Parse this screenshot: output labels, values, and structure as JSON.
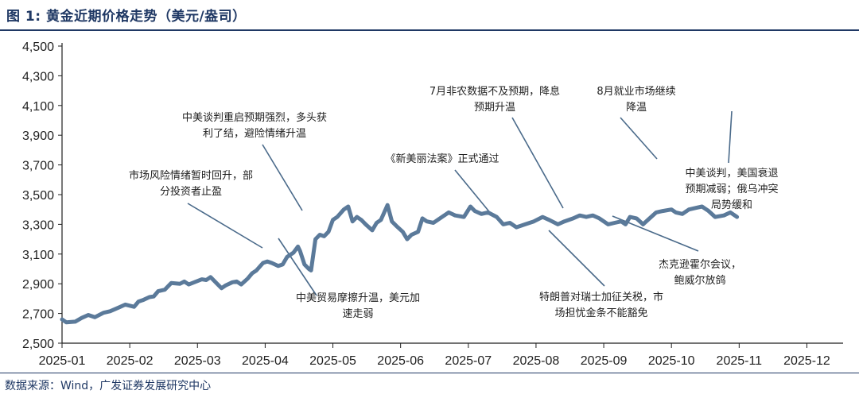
{
  "header": {
    "title": "图 1:  黄金近期价格走势（美元/盎司）"
  },
  "footer": {
    "source": "数据来源：Wind，广发证券发展研究中心"
  },
  "colors": {
    "series": "#5b7a9a",
    "leader": "#4a6a8a",
    "title": "#1f3864"
  },
  "chart_data": {
    "type": "line",
    "title": "图 1:  黄金近期价格走势（美元/盎司）",
    "xlabel": "",
    "ylabel": "",
    "ylim": [
      2500,
      4500
    ],
    "yticks": [
      "2,500",
      "2,700",
      "2,900",
      "3,100",
      "3,300",
      "3,500",
      "3,700",
      "3,900",
      "4,100",
      "4,300",
      "4,500"
    ],
    "xticks": [
      "2025-01",
      "2025-02",
      "2025-03",
      "2025-04",
      "2025-05",
      "2025-06",
      "2025-07",
      "2025-08",
      "2025-09",
      "2025-10",
      "2025-11",
      "2025-12"
    ],
    "grid": false,
    "series": [
      {
        "name": "",
        "points": [
          [
            "2025-01-01",
            2660
          ],
          [
            "2025-01-03",
            2640
          ],
          [
            "2025-01-07",
            2645
          ],
          [
            "2025-01-10",
            2670
          ],
          [
            "2025-01-13",
            2690
          ],
          [
            "2025-01-16",
            2675
          ],
          [
            "2025-01-20",
            2705
          ],
          [
            "2025-01-23",
            2715
          ],
          [
            "2025-01-27",
            2740
          ],
          [
            "2025-01-30",
            2760
          ],
          [
            "2025-02-03",
            2745
          ],
          [
            "2025-02-05",
            2780
          ],
          [
            "2025-02-07",
            2790
          ],
          [
            "2025-02-10",
            2810
          ],
          [
            "2025-02-12",
            2815
          ],
          [
            "2025-02-14",
            2850
          ],
          [
            "2025-02-17",
            2860
          ],
          [
            "2025-02-20",
            2905
          ],
          [
            "2025-02-24",
            2900
          ],
          [
            "2025-02-26",
            2915
          ],
          [
            "2025-02-28",
            2895
          ],
          [
            "2025-03-03",
            2930
          ],
          [
            "2025-03-05",
            2925
          ],
          [
            "2025-03-07",
            2945
          ],
          [
            "2025-03-10",
            2900
          ],
          [
            "2025-03-12",
            2870
          ],
          [
            "2025-03-14",
            2890
          ],
          [
            "2025-03-17",
            2910
          ],
          [
            "2025-03-19",
            2915
          ],
          [
            "2025-03-21",
            2895
          ],
          [
            "2025-03-24",
            2935
          ],
          [
            "2025-03-26",
            2970
          ],
          [
            "2025-03-28",
            2990
          ],
          [
            "2025-03-31",
            3040
          ],
          [
            "2025-04-02",
            3050
          ],
          [
            "2025-04-04",
            3040
          ],
          [
            "2025-04-07",
            3020
          ],
          [
            "2025-04-09",
            3030
          ],
          [
            "2025-04-11",
            3080
          ],
          [
            "2025-04-14",
            3110
          ],
          [
            "2025-04-16",
            3150
          ],
          [
            "2025-04-17",
            3120
          ],
          [
            "2025-04-19",
            3030
          ],
          [
            "2025-04-21",
            3000
          ],
          [
            "2025-04-22",
            2990
          ],
          [
            "2025-04-24",
            3200
          ],
          [
            "2025-04-26",
            3230
          ],
          [
            "2025-04-28",
            3220
          ],
          [
            "2025-04-30",
            3250
          ],
          [
            "2025-05-01",
            3330
          ],
          [
            "2025-05-03",
            3350
          ],
          [
            "2025-05-06",
            3400
          ],
          [
            "2025-05-08",
            3420
          ],
          [
            "2025-05-10",
            3320
          ],
          [
            "2025-05-12",
            3350
          ],
          [
            "2025-05-14",
            3330
          ],
          [
            "2025-05-16",
            3300
          ],
          [
            "2025-05-19",
            3260
          ],
          [
            "2025-05-21",
            3310
          ],
          [
            "2025-05-23",
            3330
          ],
          [
            "2025-05-26",
            3430
          ],
          [
            "2025-05-28",
            3320
          ],
          [
            "2025-05-30",
            3290
          ],
          [
            "2025-06-02",
            3250
          ],
          [
            "2025-06-04",
            3200
          ],
          [
            "2025-06-06",
            3230
          ],
          [
            "2025-06-09",
            3250
          ],
          [
            "2025-06-11",
            3340
          ],
          [
            "2025-06-13",
            3320
          ],
          [
            "2025-06-16",
            3310
          ],
          [
            "2025-06-18",
            3330
          ],
          [
            "2025-06-20",
            3350
          ],
          [
            "2025-06-23",
            3380
          ],
          [
            "2025-06-26",
            3360
          ],
          [
            "2025-06-30",
            3350
          ],
          [
            "2025-07-02",
            3420
          ],
          [
            "2025-07-04",
            3390
          ],
          [
            "2025-07-07",
            3370
          ],
          [
            "2025-07-10",
            3380
          ],
          [
            "2025-07-14",
            3350
          ],
          [
            "2025-07-17",
            3300
          ],
          [
            "2025-07-20",
            3310
          ],
          [
            "2025-07-23",
            3280
          ],
          [
            "2025-07-27",
            3300
          ],
          [
            "2025-07-31",
            3320
          ],
          [
            "2025-08-04",
            3350
          ],
          [
            "2025-08-07",
            3330
          ],
          [
            "2025-08-11",
            3300
          ],
          [
            "2025-08-14",
            3320
          ],
          [
            "2025-08-18",
            3340
          ],
          [
            "2025-08-21",
            3360
          ],
          [
            "2025-08-24",
            3350
          ],
          [
            "2025-08-27",
            3360
          ],
          [
            "2025-08-30",
            3340
          ],
          [
            "2025-09-03",
            3300
          ],
          [
            "2025-09-06",
            3310
          ],
          [
            "2025-09-09",
            3320
          ],
          [
            "2025-09-11",
            3300
          ],
          [
            "2025-09-13",
            3350
          ],
          [
            "2025-09-16",
            3340
          ],
          [
            "2025-09-19",
            3300
          ],
          [
            "2025-09-22",
            3340
          ],
          [
            "2025-09-25",
            3380
          ],
          [
            "2025-09-28",
            3390
          ],
          [
            "2025-10-01",
            3400
          ],
          [
            "2025-10-03",
            3380
          ],
          [
            "2025-10-06",
            3370
          ],
          [
            "2025-10-09",
            3400
          ],
          [
            "2025-10-12",
            3410
          ],
          [
            "2025-10-15",
            3420
          ],
          [
            "2025-10-18",
            3390
          ],
          [
            "2025-10-21",
            3350
          ],
          [
            "2025-10-25",
            3360
          ],
          [
            "2025-10-28",
            3380
          ],
          [
            "2025-10-31",
            3350
          ]
        ]
      }
    ],
    "annotations": [
      "市场风险情绪暂时回升，部",
      "分投资者止盈",
      "中美谈判重启预期强烈，多头获",
      "利了结，避险情绪升温",
      "中美贸易摩擦升温，美元加",
      "速走弱",
      "《新美丽法案》正式通过",
      "7月非农数据不及预期，降息",
      "预期升温",
      "8月就业市场继续",
      "降温",
      "特朗普对瑞士加征关税，市",
      "场担忧金条不能豁免",
      "杰克逊霍尔会议，",
      "鲍威尔放鸽",
      "中美谈判，美国衰退",
      "预期减弱；俄乌冲突",
      "局势缓和"
    ]
  }
}
